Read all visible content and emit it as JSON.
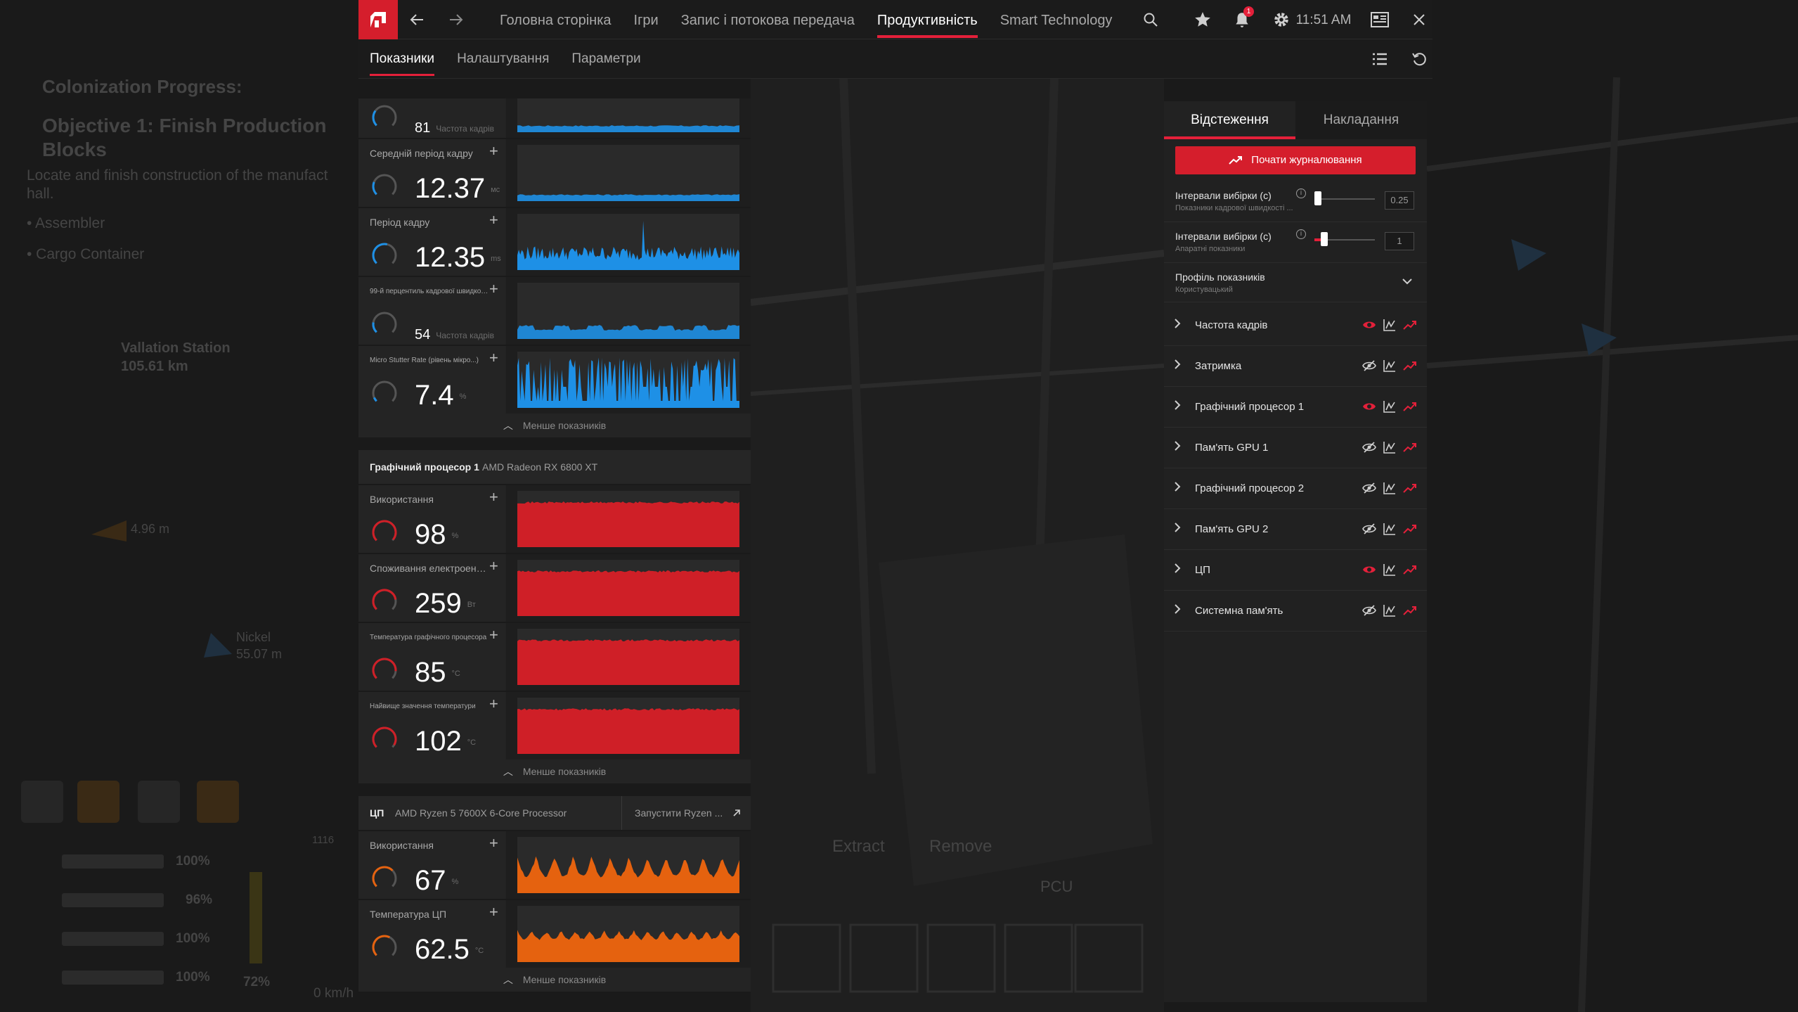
{
  "topbar": {
    "nav": [
      "Головна сторінка",
      "Ігри",
      "Запис і потокова передача",
      "Продуктивність",
      "Smart Technology"
    ],
    "active_nav": "Продуктивність",
    "clock": "11:51 AM",
    "notifications": "1",
    "icons": [
      "amd-logo-icon",
      "back-icon",
      "forward-icon",
      "search-icon",
      "star-icon",
      "bell-icon",
      "gear-icon",
      "account-icon",
      "close-icon"
    ]
  },
  "subbar": {
    "tabs": [
      "Показники",
      "Налаштування",
      "Параметри"
    ],
    "active": "Показники",
    "icons": [
      "list-view-icon",
      "reset-icon"
    ]
  },
  "metrics": {
    "fps_group": [
      {
        "label": "Частота кадрів",
        "value": "81",
        "unit": "Частота кадрів",
        "small": true,
        "gauge": 0.3,
        "chart": "line-low"
      },
      {
        "label": "Середній період кадру",
        "value": "12.37",
        "unit": "мс",
        "small": false,
        "gauge": 0.25,
        "chart": "line-low"
      },
      {
        "label": "Період кадру",
        "value": "12.35",
        "unit": "ms",
        "small": false,
        "gauge": 0.55,
        "chart": "noise",
        "accent": true
      },
      {
        "label": "99-й перцентиль кадрової швидкості",
        "value": "54",
        "unit": "Частота кадрів",
        "small": true,
        "gauge": 0.2,
        "chart": "wave-low"
      },
      {
        "label": "Micro Stutter Rate (рівень мікро...)",
        "value": "7.4",
        "unit": "%",
        "small": false,
        "gauge": 0.08,
        "chart": "spikes"
      }
    ],
    "less_label": "Менше показників",
    "gpu": {
      "title": "Графічний процесор 1",
      "model": "AMD Radeon RX 6800 XT",
      "rows": [
        {
          "label": "Використання",
          "value": "98",
          "unit": "%",
          "gauge": 0.98
        },
        {
          "label": "Споживання електроенергії",
          "value": "259",
          "unit": "Вт",
          "gauge": 0.8
        },
        {
          "label": "Температура графічного процесора",
          "value": "85",
          "unit": "°C",
          "gauge": 0.85
        },
        {
          "label": "Найвище значення температури",
          "value": "102",
          "unit": "°C",
          "gauge": 0.95
        }
      ]
    },
    "cpu": {
      "title": "ЦП",
      "model": "AMD Ryzen 5 7600X 6-Core Processor",
      "launch": "Запустити Ryzen ...",
      "rows": [
        {
          "label": "Використання",
          "value": "67",
          "unit": "%",
          "gauge": 0.67
        },
        {
          "label": "Температура ЦП",
          "value": "62.5",
          "unit": "°C",
          "gauge": 0.6
        }
      ]
    }
  },
  "panel": {
    "tabs": [
      "Відстеження",
      "Накладання"
    ],
    "active": "Відстеження",
    "log_button": "Почати журналювання",
    "interval1": {
      "label": "Інтервали вибірки (с)",
      "sub": "Показники кадрової швидкості ...",
      "value": "0.25",
      "level": 0.05
    },
    "interval2": {
      "label": "Інтервали вибірки (с)",
      "sub": "Апаратні показники",
      "value": "1",
      "level": 0.15
    },
    "profile": {
      "label": "Профіль показників",
      "sub": "Користувацький"
    },
    "items": [
      {
        "label": "Частота кадрів",
        "visible": true
      },
      {
        "label": "Затримка",
        "visible": false
      },
      {
        "label": "Графічний процесор 1",
        "visible": true
      },
      {
        "label": "Пам'ять GPU 1",
        "visible": false
      },
      {
        "label": "Графічний процесор 2",
        "visible": false
      },
      {
        "label": "Пам'ять GPU 2",
        "visible": false
      },
      {
        "label": "ЦП",
        "visible": true
      },
      {
        "label": "Системна пам'ять",
        "visible": false
      }
    ]
  },
  "background": {
    "texts": [
      "Colonization Progress:",
      "Objective 1: Finish Production Blocks",
      "Locate and finish construction of the manufact",
      "hall.",
      "• Assembler",
      "• Cargo Container",
      "Vallation Station",
      "105.61 km",
      "4.96 m",
      "Nickel",
      "55.07 m",
      "Extract",
      "Remove",
      "PCU",
      "100%",
      "96%",
      "100%",
      "100%",
      "72%",
      "0 km/h",
      "1116"
    ]
  },
  "colors": {
    "accent": "#e4203a",
    "blue": "#1e90e6",
    "red": "#cf1f27",
    "orange": "#e5620f"
  }
}
